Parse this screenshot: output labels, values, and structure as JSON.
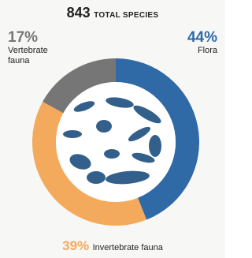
{
  "chart_data": {
    "type": "donut",
    "total": 843,
    "title": "TOTAL SPECIES",
    "categories": [
      "Flora",
      "Invertebrate fauna",
      "Vertebrate fauna"
    ],
    "values": [
      44,
      39,
      17
    ],
    "value_labels": [
      "44%",
      "39%",
      "17%"
    ],
    "colors": [
      "#2f69a6",
      "#f4aa5c",
      "#767676"
    ]
  }
}
